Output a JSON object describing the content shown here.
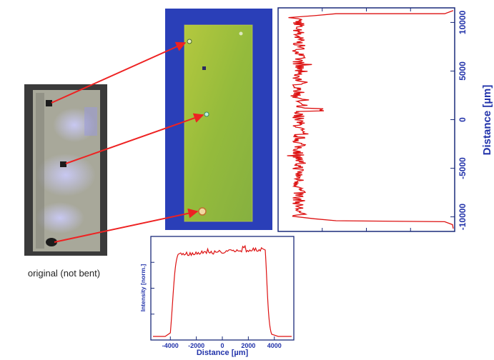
{
  "caption": "original (not bent)",
  "colors": {
    "profile": "#dd1111",
    "axis_text": "#2233aa",
    "arrow": "#ee2222",
    "map_background": "#2a3fb8",
    "map_strip": "#9fbf3a"
  },
  "vertical_profile": {
    "ylabel": "Distance [µm]",
    "ylim": [
      -11500,
      11500
    ],
    "ticks": [
      "10000",
      "5000",
      "0",
      "-5000",
      "-10000"
    ]
  },
  "horizontal_profile": {
    "xlabel": "Distance [µm]",
    "ylabel": "Intensity [norm.]",
    "xlim": [
      -5500,
      5500
    ],
    "ticks": [
      "-4000",
      "-2000",
      "0",
      "2000",
      "4000"
    ]
  }
}
